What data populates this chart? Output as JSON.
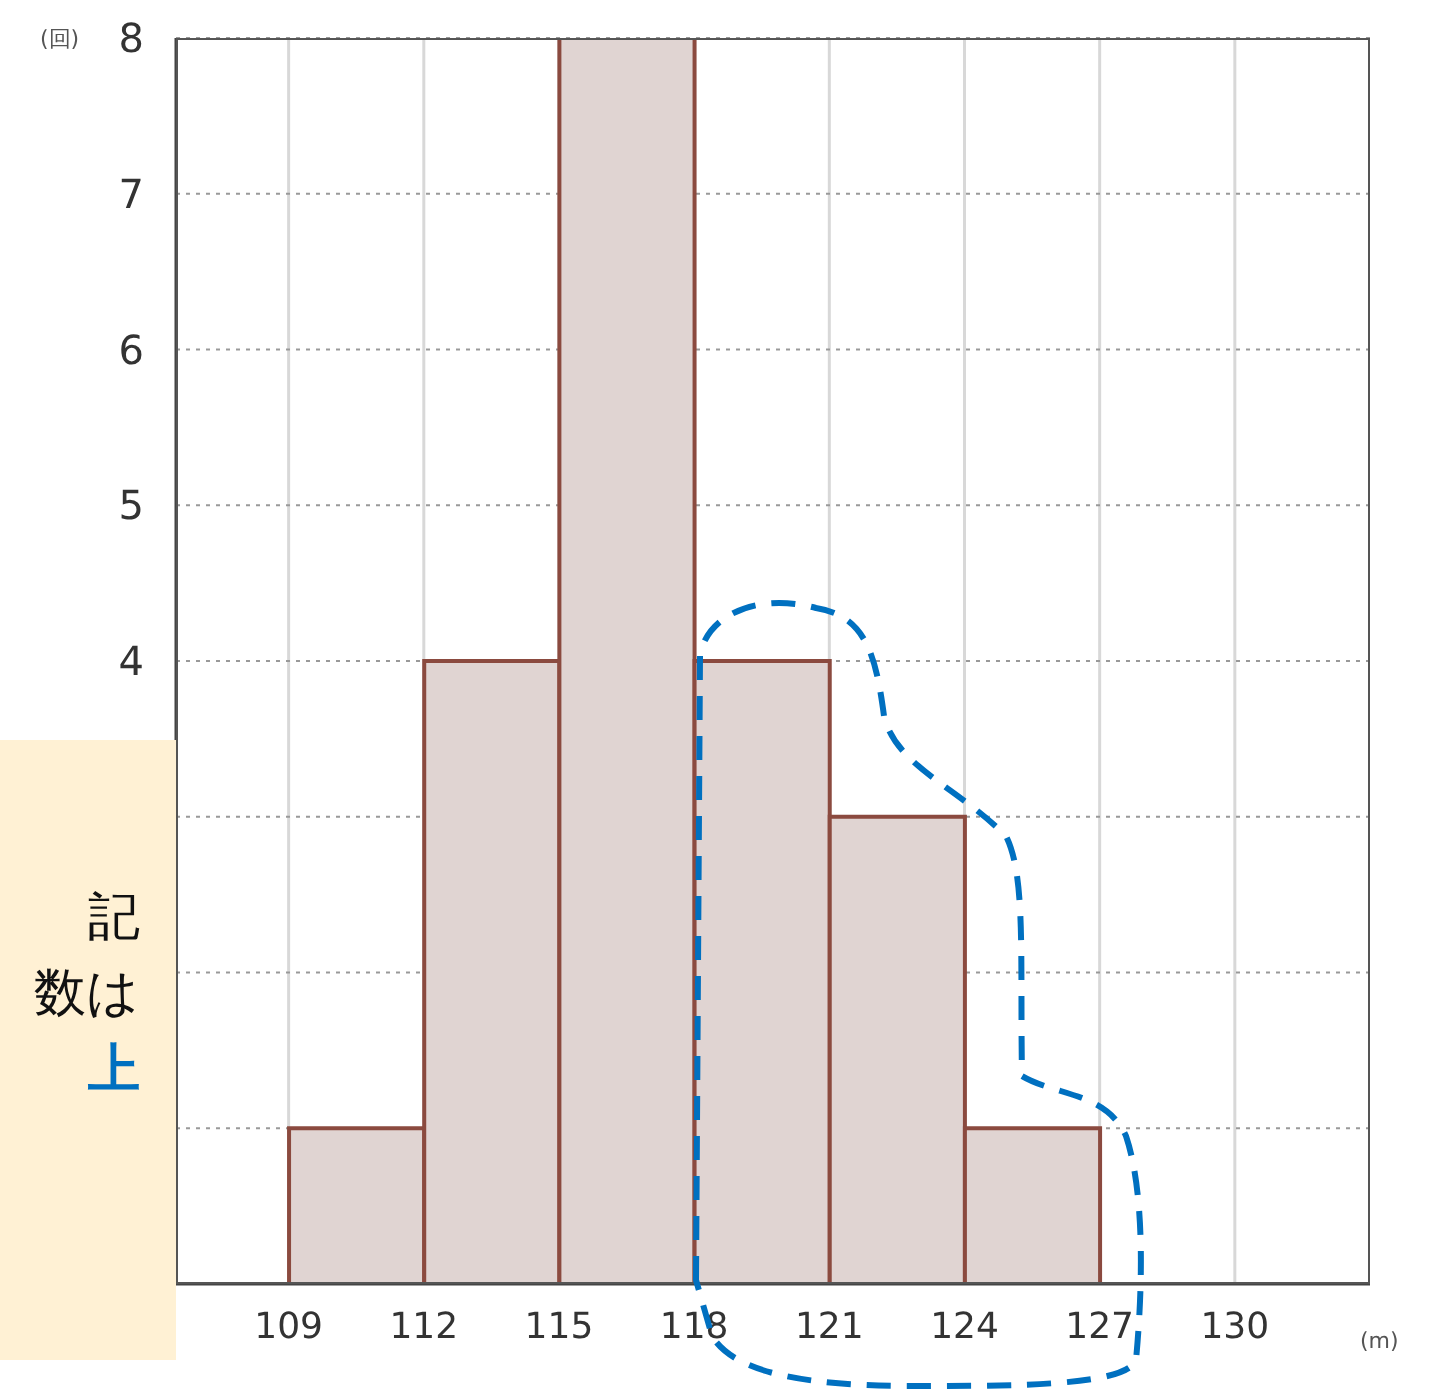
{
  "chart_data": {
    "type": "histogram",
    "ylabel": "(回)",
    "xlabel": "(m)",
    "bins": [
      109,
      112,
      115,
      118,
      121,
      124,
      127
    ],
    "values": [
      1,
      4,
      8,
      4,
      3,
      1
    ],
    "color": "#e0d4d2",
    "xlim": [
      106.5,
      133
    ],
    "xticks": [
      109,
      112,
      115,
      118,
      121,
      124,
      127,
      130
    ],
    "ylim": [
      0,
      8
    ],
    "yticks": [
      {
        "value": 0,
        "label": null
      },
      {
        "value": 1,
        "label": null
      },
      {
        "value": 2,
        "label": null
      },
      {
        "value": 3,
        "label": null
      },
      4,
      5,
      6,
      7,
      8
    ],
    "grid": true,
    "annotations": [
      "記",
      "数は",
      "上"
    ]
  }
}
